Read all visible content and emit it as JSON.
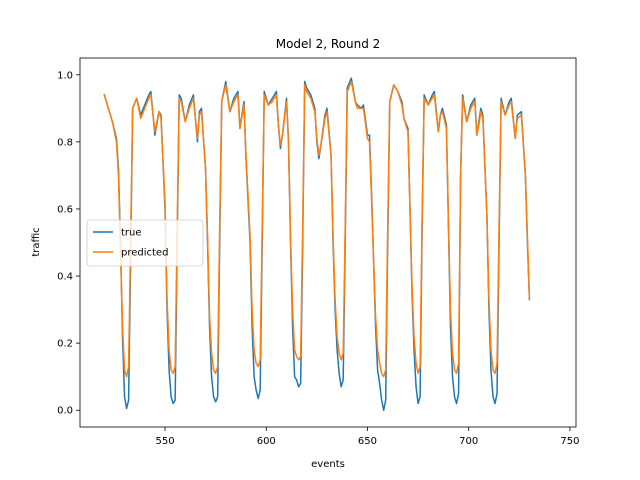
{
  "chart_data": {
    "type": "line",
    "title": "Model 2, Round 2",
    "xlabel": "events",
    "ylabel": "traffic",
    "xlim": [
      508,
      753
    ],
    "ylim": [
      -0.05,
      1.05
    ],
    "xticks": [
      550,
      600,
      650,
      700,
      750
    ],
    "yticks": [
      0.0,
      0.2,
      0.4,
      0.6,
      0.8,
      1.0
    ],
    "grid": false,
    "legend": "center-left",
    "series": [
      {
        "name": "true",
        "color": "#1f77b4",
        "points": [
          [
            520,
            0.94
          ],
          [
            522,
            0.9
          ],
          [
            524,
            0.86
          ],
          [
            526,
            0.81
          ],
          [
            527,
            0.72
          ],
          [
            528,
            0.5
          ],
          [
            529,
            0.22
          ],
          [
            530,
            0.04
          ],
          [
            531,
            0.005
          ],
          [
            532,
            0.03
          ],
          [
            533,
            0.45
          ],
          [
            534,
            0.9
          ],
          [
            536,
            0.93
          ],
          [
            538,
            0.88
          ],
          [
            540,
            0.91
          ],
          [
            542,
            0.94
          ],
          [
            543,
            0.95
          ],
          [
            545,
            0.82
          ],
          [
            547,
            0.89
          ],
          [
            548,
            0.88
          ],
          [
            550,
            0.6
          ],
          [
            551,
            0.3
          ],
          [
            552,
            0.12
          ],
          [
            553,
            0.04
          ],
          [
            554,
            0.02
          ],
          [
            555,
            0.03
          ],
          [
            556,
            0.5
          ],
          [
            557,
            0.94
          ],
          [
            558,
            0.93
          ],
          [
            560,
            0.86
          ],
          [
            562,
            0.91
          ],
          [
            564,
            0.94
          ],
          [
            566,
            0.8
          ],
          [
            567,
            0.89
          ],
          [
            568,
            0.9
          ],
          [
            570,
            0.72
          ],
          [
            571,
            0.5
          ],
          [
            572,
            0.25
          ],
          [
            573,
            0.1
          ],
          [
            574,
            0.04
          ],
          [
            575,
            0.025
          ],
          [
            576,
            0.04
          ],
          [
            577,
            0.5
          ],
          [
            578,
            0.92
          ],
          [
            580,
            0.98
          ],
          [
            582,
            0.89
          ],
          [
            584,
            0.93
          ],
          [
            586,
            0.95
          ],
          [
            587,
            0.84
          ],
          [
            589,
            0.92
          ],
          [
            590,
            0.75
          ],
          [
            592,
            0.5
          ],
          [
            593,
            0.25
          ],
          [
            594,
            0.1
          ],
          [
            595,
            0.06
          ],
          [
            596,
            0.035
          ],
          [
            597,
            0.06
          ],
          [
            598,
            0.5
          ],
          [
            599,
            0.95
          ],
          [
            601,
            0.91
          ],
          [
            603,
            0.93
          ],
          [
            605,
            0.95
          ],
          [
            606,
            0.85
          ],
          [
            607,
            0.78
          ],
          [
            608,
            0.82
          ],
          [
            610,
            0.93
          ],
          [
            611,
            0.8
          ],
          [
            612,
            0.5
          ],
          [
            613,
            0.25
          ],
          [
            614,
            0.1
          ],
          [
            615,
            0.09
          ],
          [
            616,
            0.07
          ],
          [
            617,
            0.08
          ],
          [
            618,
            0.5
          ],
          [
            619,
            0.98
          ],
          [
            620,
            0.96
          ],
          [
            622,
            0.94
          ],
          [
            624,
            0.9
          ],
          [
            625,
            0.8
          ],
          [
            626,
            0.75
          ],
          [
            627,
            0.79
          ],
          [
            629,
            0.88
          ],
          [
            630,
            0.9
          ],
          [
            632,
            0.76
          ],
          [
            633,
            0.5
          ],
          [
            634,
            0.3
          ],
          [
            635,
            0.18
          ],
          [
            636,
            0.11
          ],
          [
            637,
            0.07
          ],
          [
            638,
            0.09
          ],
          [
            639,
            0.5
          ],
          [
            640,
            0.96
          ],
          [
            642,
            0.99
          ],
          [
            644,
            0.92
          ],
          [
            645,
            0.91
          ],
          [
            647,
            0.9
          ],
          [
            648,
            0.91
          ],
          [
            650,
            0.82
          ],
          [
            651,
            0.82
          ],
          [
            652,
            0.65
          ],
          [
            653,
            0.45
          ],
          [
            654,
            0.25
          ],
          [
            655,
            0.12
          ],
          [
            656,
            0.08
          ],
          [
            657,
            0.03
          ],
          [
            658,
            0.0
          ],
          [
            659,
            0.03
          ],
          [
            660,
            0.5
          ],
          [
            661,
            0.92
          ],
          [
            663,
            0.97
          ],
          [
            665,
            0.95
          ],
          [
            667,
            0.92
          ],
          [
            668,
            0.87
          ],
          [
            670,
            0.84
          ],
          [
            671,
            0.6
          ],
          [
            672,
            0.35
          ],
          [
            673,
            0.18
          ],
          [
            674,
            0.07
          ],
          [
            675,
            0.02
          ],
          [
            676,
            0.04
          ],
          [
            677,
            0.55
          ],
          [
            678,
            0.94
          ],
          [
            680,
            0.91
          ],
          [
            682,
            0.94
          ],
          [
            683,
            0.95
          ],
          [
            685,
            0.83
          ],
          [
            686,
            0.88
          ],
          [
            687,
            0.9
          ],
          [
            689,
            0.85
          ],
          [
            690,
            0.55
          ],
          [
            691,
            0.25
          ],
          [
            692,
            0.1
          ],
          [
            693,
            0.04
          ],
          [
            694,
            0.02
          ],
          [
            695,
            0.05
          ],
          [
            696,
            0.7
          ],
          [
            697,
            0.94
          ],
          [
            699,
            0.86
          ],
          [
            701,
            0.91
          ],
          [
            703,
            0.93
          ],
          [
            704,
            0.82
          ],
          [
            705,
            0.86
          ],
          [
            706,
            0.9
          ],
          [
            707,
            0.88
          ],
          [
            709,
            0.58
          ],
          [
            710,
            0.3
          ],
          [
            711,
            0.12
          ],
          [
            712,
            0.04
          ],
          [
            713,
            0.02
          ],
          [
            714,
            0.05
          ],
          [
            715,
            0.5
          ],
          [
            716,
            0.93
          ],
          [
            718,
            0.88
          ],
          [
            720,
            0.92
          ],
          [
            721,
            0.93
          ],
          [
            723,
            0.81
          ],
          [
            724,
            0.88
          ],
          [
            726,
            0.89
          ],
          [
            728,
            0.7
          ],
          [
            729,
            0.5
          ],
          [
            730,
            0.33
          ]
        ]
      },
      {
        "name": "predicted",
        "color": "#ff7f0e",
        "points": [
          [
            520,
            0.94
          ],
          [
            522,
            0.9
          ],
          [
            524,
            0.86
          ],
          [
            526,
            0.8
          ],
          [
            527,
            0.7
          ],
          [
            528,
            0.48
          ],
          [
            529,
            0.25
          ],
          [
            530,
            0.12
          ],
          [
            531,
            0.1
          ],
          [
            532,
            0.13
          ],
          [
            533,
            0.5
          ],
          [
            534,
            0.9
          ],
          [
            536,
            0.93
          ],
          [
            538,
            0.87
          ],
          [
            540,
            0.9
          ],
          [
            542,
            0.93
          ],
          [
            543,
            0.94
          ],
          [
            545,
            0.83
          ],
          [
            547,
            0.89
          ],
          [
            548,
            0.87
          ],
          [
            550,
            0.62
          ],
          [
            551,
            0.33
          ],
          [
            552,
            0.18
          ],
          [
            553,
            0.12
          ],
          [
            554,
            0.11
          ],
          [
            555,
            0.13
          ],
          [
            556,
            0.55
          ],
          [
            557,
            0.93
          ],
          [
            558,
            0.92
          ],
          [
            560,
            0.86
          ],
          [
            562,
            0.9
          ],
          [
            564,
            0.93
          ],
          [
            566,
            0.81
          ],
          [
            567,
            0.88
          ],
          [
            568,
            0.89
          ],
          [
            570,
            0.72
          ],
          [
            571,
            0.52
          ],
          [
            572,
            0.28
          ],
          [
            573,
            0.17
          ],
          [
            574,
            0.12
          ],
          [
            575,
            0.11
          ],
          [
            576,
            0.13
          ],
          [
            577,
            0.55
          ],
          [
            578,
            0.92
          ],
          [
            580,
            0.97
          ],
          [
            582,
            0.89
          ],
          [
            584,
            0.92
          ],
          [
            586,
            0.94
          ],
          [
            587,
            0.84
          ],
          [
            589,
            0.91
          ],
          [
            590,
            0.76
          ],
          [
            592,
            0.52
          ],
          [
            593,
            0.3
          ],
          [
            594,
            0.18
          ],
          [
            595,
            0.14
          ],
          [
            596,
            0.13
          ],
          [
            597,
            0.15
          ],
          [
            598,
            0.55
          ],
          [
            599,
            0.94
          ],
          [
            601,
            0.91
          ],
          [
            603,
            0.92
          ],
          [
            605,
            0.94
          ],
          [
            606,
            0.85
          ],
          [
            607,
            0.79
          ],
          [
            608,
            0.82
          ],
          [
            610,
            0.92
          ],
          [
            611,
            0.8
          ],
          [
            612,
            0.52
          ],
          [
            613,
            0.3
          ],
          [
            614,
            0.18
          ],
          [
            615,
            0.16
          ],
          [
            616,
            0.15
          ],
          [
            617,
            0.16
          ],
          [
            618,
            0.55
          ],
          [
            619,
            0.97
          ],
          [
            620,
            0.95
          ],
          [
            622,
            0.93
          ],
          [
            624,
            0.89
          ],
          [
            625,
            0.81
          ],
          [
            626,
            0.76
          ],
          [
            627,
            0.79
          ],
          [
            629,
            0.87
          ],
          [
            630,
            0.89
          ],
          [
            632,
            0.76
          ],
          [
            633,
            0.52
          ],
          [
            634,
            0.33
          ],
          [
            635,
            0.22
          ],
          [
            636,
            0.17
          ],
          [
            637,
            0.15
          ],
          [
            638,
            0.17
          ],
          [
            639,
            0.55
          ],
          [
            640,
            0.95
          ],
          [
            642,
            0.98
          ],
          [
            644,
            0.92
          ],
          [
            645,
            0.9
          ],
          [
            647,
            0.9
          ],
          [
            648,
            0.9
          ],
          [
            650,
            0.81
          ],
          [
            651,
            0.8
          ],
          [
            652,
            0.63
          ],
          [
            653,
            0.45
          ],
          [
            654,
            0.28
          ],
          [
            655,
            0.18
          ],
          [
            656,
            0.14
          ],
          [
            657,
            0.11
          ],
          [
            658,
            0.1
          ],
          [
            659,
            0.12
          ],
          [
            660,
            0.55
          ],
          [
            661,
            0.92
          ],
          [
            663,
            0.97
          ],
          [
            665,
            0.95
          ],
          [
            667,
            0.91
          ],
          [
            668,
            0.87
          ],
          [
            670,
            0.83
          ],
          [
            671,
            0.6
          ],
          [
            672,
            0.37
          ],
          [
            673,
            0.22
          ],
          [
            674,
            0.14
          ],
          [
            675,
            0.11
          ],
          [
            676,
            0.13
          ],
          [
            677,
            0.58
          ],
          [
            678,
            0.93
          ],
          [
            680,
            0.91
          ],
          [
            682,
            0.93
          ],
          [
            683,
            0.94
          ],
          [
            685,
            0.83
          ],
          [
            686,
            0.88
          ],
          [
            687,
            0.89
          ],
          [
            689,
            0.84
          ],
          [
            690,
            0.56
          ],
          [
            691,
            0.3
          ],
          [
            692,
            0.17
          ],
          [
            693,
            0.12
          ],
          [
            694,
            0.11
          ],
          [
            695,
            0.14
          ],
          [
            696,
            0.7
          ],
          [
            697,
            0.93
          ],
          [
            699,
            0.86
          ],
          [
            701,
            0.9
          ],
          [
            703,
            0.92
          ],
          [
            704,
            0.82
          ],
          [
            705,
            0.85
          ],
          [
            706,
            0.89
          ],
          [
            707,
            0.87
          ],
          [
            709,
            0.58
          ],
          [
            710,
            0.33
          ],
          [
            711,
            0.18
          ],
          [
            712,
            0.12
          ],
          [
            713,
            0.11
          ],
          [
            714,
            0.14
          ],
          [
            715,
            0.55
          ],
          [
            716,
            0.92
          ],
          [
            718,
            0.88
          ],
          [
            720,
            0.91
          ],
          [
            721,
            0.92
          ],
          [
            723,
            0.81
          ],
          [
            724,
            0.87
          ],
          [
            726,
            0.88
          ],
          [
            728,
            0.7
          ],
          [
            729,
            0.52
          ],
          [
            730,
            0.33
          ]
        ]
      }
    ]
  }
}
